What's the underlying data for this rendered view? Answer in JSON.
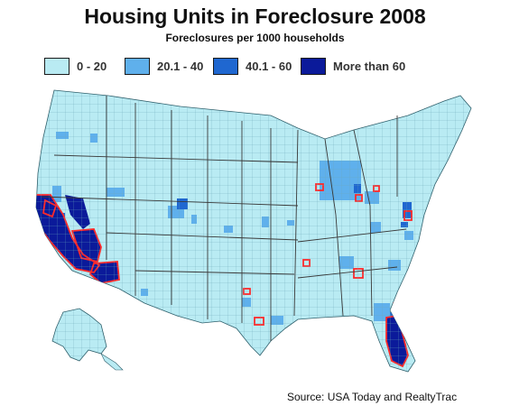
{
  "title": "Housing Units in Foreclosure 2008",
  "subtitle": "Foreclosures per 1000 households",
  "legend": [
    {
      "label": "0 - 20",
      "color": "#b9ebf3"
    },
    {
      "label": "20.1 - 40",
      "color": "#5fb0ec"
    },
    {
      "label": "40.1 - 60",
      "color": "#1f67d0"
    },
    {
      "label": "More than 60",
      "color": "#0b1a9a"
    }
  ],
  "highlight_outline_color": "#ff2a2a",
  "county_line_color": "#6aa9b8",
  "source": "Source:  USA Today and RealtyTrac"
}
